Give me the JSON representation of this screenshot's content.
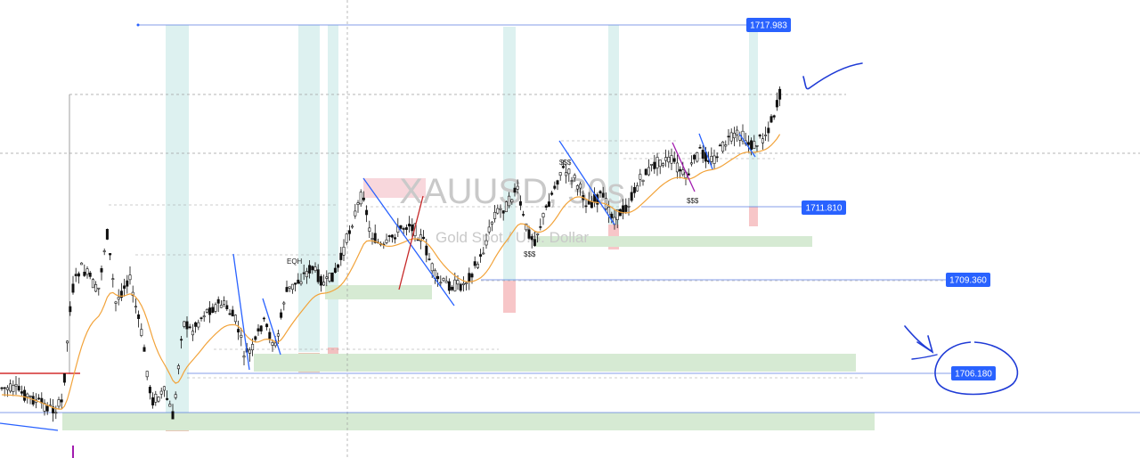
{
  "chart_data": {
    "type": "candlestick",
    "watermark_symbol": "XAUUSD, 30s",
    "watermark_name": "Gold Spot / U.S. Dollar",
    "y_range": [
      1704.0,
      1719.3
    ],
    "price_tags": [
      {
        "id": "high",
        "value": "1717.983"
      },
      {
        "id": "mid",
        "value": "1711.810"
      },
      {
        "id": "low-mid",
        "value": "1709.360"
      },
      {
        "id": "target",
        "value": "1706.180"
      }
    ],
    "annotations": {
      "eqh": "EQH",
      "sss_a": "$$$",
      "sss_b": "$$$",
      "sss_c": "$$$",
      "sss_top": "$$$"
    },
    "series": [
      {
        "name": "",
        "type": "candles",
        "color": "#111111"
      },
      {
        "name": "",
        "type": "moving-average",
        "color": "#f2a33a"
      }
    ],
    "colors": {
      "axis_line": "#2962ff",
      "tag_bg": "#2962ff",
      "supply_zone": "#f8d7dc",
      "demand_zone": "#d6ead3",
      "session_band": "#d9efee",
      "pen": "#1f3bd6",
      "level_red": "#d32f2f",
      "marker_purple": "#a21caf"
    }
  }
}
